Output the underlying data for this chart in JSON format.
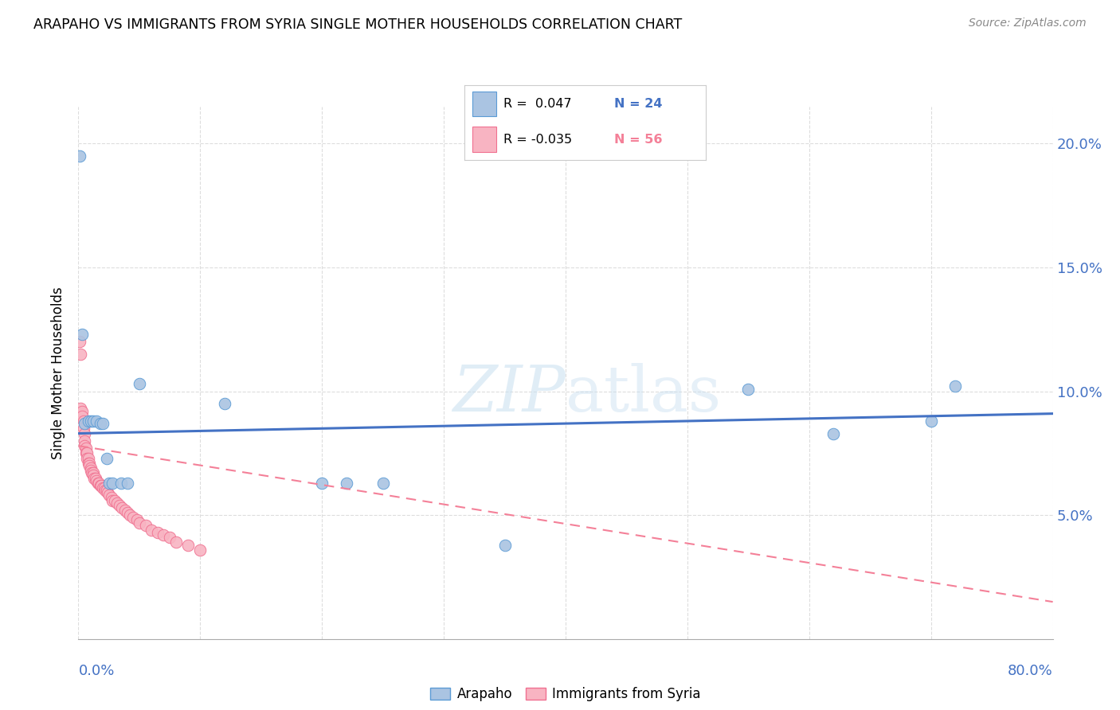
{
  "title": "ARAPAHO VS IMMIGRANTS FROM SYRIA SINGLE MOTHER HOUSEHOLDS CORRELATION CHART",
  "source": "Source: ZipAtlas.com",
  "ylabel": "Single Mother Households",
  "ytick_values": [
    0.05,
    0.1,
    0.15,
    0.2
  ],
  "xmin": 0.0,
  "xmax": 0.8,
  "ymin": 0.0,
  "ymax": 0.215,
  "color_arapaho_fill": "#aac4e2",
  "color_arapaho_edge": "#5b9bd5",
  "color_syria_fill": "#f8b4c2",
  "color_syria_edge": "#f07090",
  "color_line_arapaho": "#4472c4",
  "color_line_syria": "#f48098",
  "watermark": "ZIPatlas",
  "arapaho_line_x0": 0.0,
  "arapaho_line_x1": 0.8,
  "arapaho_line_y0": 0.083,
  "arapaho_line_y1": 0.091,
  "syria_line_x0": 0.0,
  "syria_line_x1": 0.8,
  "syria_line_y0": 0.078,
  "syria_line_y1": 0.015,
  "arapaho_x": [
    0.003,
    0.005,
    0.008,
    0.01,
    0.012,
    0.015,
    0.018,
    0.02,
    0.023,
    0.025,
    0.028,
    0.035,
    0.04,
    0.05,
    0.12,
    0.2,
    0.22,
    0.25,
    0.35,
    0.55,
    0.62,
    0.7,
    0.72,
    0.001
  ],
  "arapaho_y": [
    0.123,
    0.087,
    0.088,
    0.088,
    0.088,
    0.088,
    0.087,
    0.087,
    0.073,
    0.063,
    0.063,
    0.063,
    0.063,
    0.103,
    0.095,
    0.063,
    0.063,
    0.063,
    0.038,
    0.101,
    0.083,
    0.088,
    0.102,
    0.195
  ],
  "syria_x": [
    0.001,
    0.002,
    0.002,
    0.003,
    0.003,
    0.004,
    0.004,
    0.005,
    0.005,
    0.005,
    0.006,
    0.006,
    0.007,
    0.007,
    0.008,
    0.008,
    0.009,
    0.009,
    0.01,
    0.01,
    0.011,
    0.012,
    0.012,
    0.013,
    0.014,
    0.015,
    0.016,
    0.017,
    0.018,
    0.019,
    0.02,
    0.021,
    0.022,
    0.023,
    0.024,
    0.025,
    0.027,
    0.028,
    0.03,
    0.032,
    0.034,
    0.036,
    0.038,
    0.04,
    0.042,
    0.045,
    0.048,
    0.05,
    0.055,
    0.06,
    0.065,
    0.07,
    0.075,
    0.08,
    0.09,
    0.1
  ],
  "syria_y": [
    0.12,
    0.115,
    0.093,
    0.092,
    0.09,
    0.088,
    0.085,
    0.083,
    0.08,
    0.078,
    0.077,
    0.075,
    0.075,
    0.073,
    0.073,
    0.071,
    0.071,
    0.07,
    0.069,
    0.068,
    0.067,
    0.067,
    0.066,
    0.065,
    0.065,
    0.064,
    0.063,
    0.063,
    0.062,
    0.062,
    0.061,
    0.061,
    0.06,
    0.06,
    0.059,
    0.058,
    0.057,
    0.056,
    0.056,
    0.055,
    0.054,
    0.053,
    0.052,
    0.051,
    0.05,
    0.049,
    0.048,
    0.047,
    0.046,
    0.044,
    0.043,
    0.042,
    0.041,
    0.039,
    0.038,
    0.036
  ]
}
